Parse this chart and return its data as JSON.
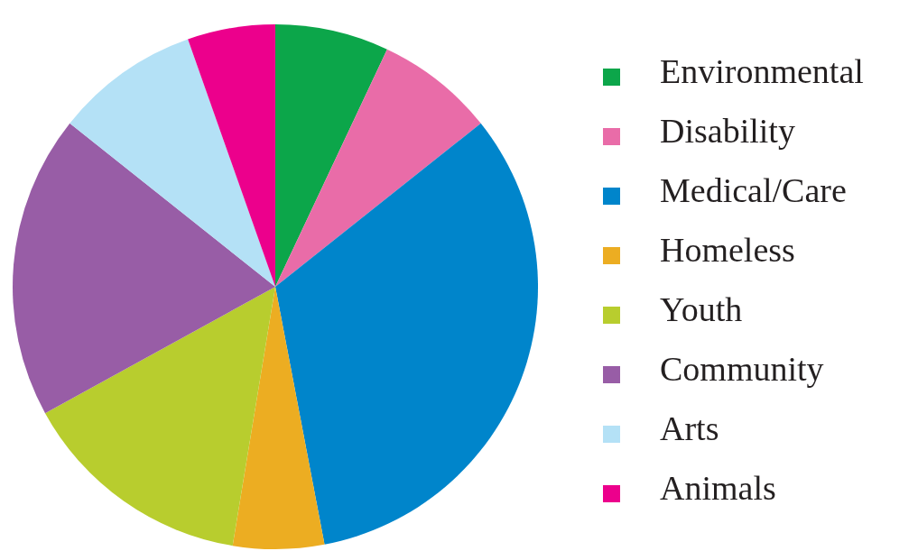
{
  "chart_data": {
    "type": "pie",
    "legend": "right",
    "categories": [
      "Environmental",
      "Disability",
      "Medical/Care",
      "Homeless",
      "Youth",
      "Community",
      "Arts",
      "Animals"
    ],
    "values": [
      7.0,
      7.3,
      32.7,
      5.6,
      14.4,
      18.7,
      8.9,
      5.4
    ],
    "colors": [
      "#0ca64a",
      "#e96ca8",
      "#0085cb",
      "#ecad22",
      "#b8cd2e",
      "#985da6",
      "#b4e1f6",
      "#ec008c"
    ]
  }
}
